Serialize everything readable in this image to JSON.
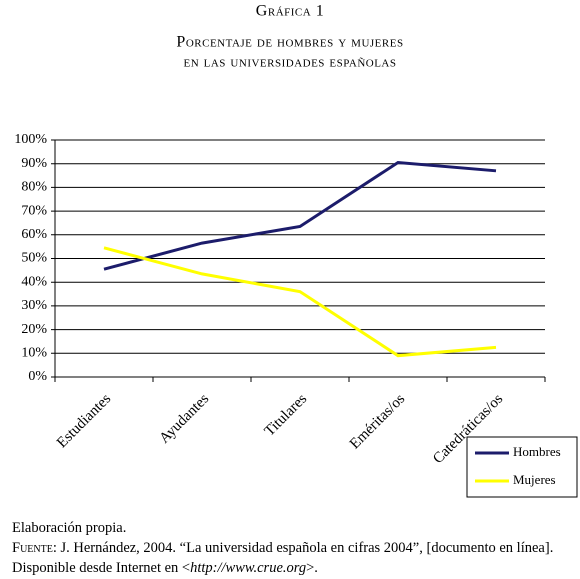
{
  "chart_data": {
    "type": "line",
    "title": "Gráfica 1",
    "subtitle": [
      "Porcentaje de hombres y mujeres",
      "en las universidades españolas"
    ],
    "categories": [
      "Estudiantes",
      "Ayudantes",
      "Titulares",
      "Eméritas/os",
      "Catedráticas/os"
    ],
    "series": [
      {
        "name": "Hombres",
        "color": "#1c1c6b",
        "values": [
          45.5,
          56.5,
          63.5,
          90.5,
          87
        ]
      },
      {
        "name": "Mujeres",
        "color": "#ffff00",
        "values": [
          54.5,
          43.5,
          36,
          9,
          12.5
        ]
      }
    ],
    "ylim": [
      0,
      100
    ],
    "yticks": [
      {
        "value": 0,
        "label": "0%"
      },
      {
        "value": 10,
        "label": "10%"
      },
      {
        "value": 20,
        "label": "20%"
      },
      {
        "value": 30,
        "label": "30%"
      },
      {
        "value": 40,
        "label": "40%"
      },
      {
        "value": 50,
        "label": "50%"
      },
      {
        "value": 60,
        "label": "60%"
      },
      {
        "value": 70,
        "label": "70%"
      },
      {
        "value": 80,
        "label": "80%"
      },
      {
        "value": 90,
        "label": "90%"
      },
      {
        "value": 100,
        "label": "100%"
      }
    ],
    "grid": true,
    "legend": "bottom-right"
  },
  "footer": {
    "note": "Elaboración propia.",
    "source_label": "Fuente:",
    "source_text": " J. Hernández, 2004. “La universidad española en cifras 2004”, [documento en línea]. Disponible desde Internet en <",
    "url": "http://www.crue.org",
    "source_end": ">."
  }
}
